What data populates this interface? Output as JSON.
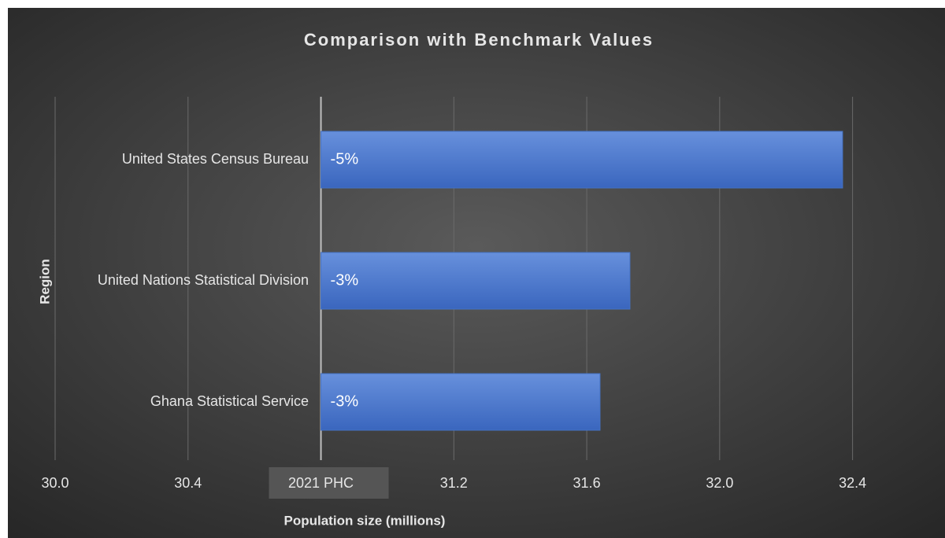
{
  "chart_data": {
    "type": "barh",
    "title": "Comparison with Benchmark Values",
    "xlabel": "Population size (millions)",
    "ylabel": "Region",
    "categories": [
      "United States Census Bureau",
      "United Nations Statistical Division",
      "Ghana Statistical Service"
    ],
    "values": [
      32.37,
      31.73,
      31.64
    ],
    "bar_labels": [
      "-5%",
      "-3%",
      "-3%"
    ],
    "bar_base": 30.8,
    "color": "#4472c4",
    "xlim": [
      30.0,
      32.6
    ],
    "xticks": [
      {
        "value": 30.0,
        "label": "30.0"
      },
      30.4,
      {
        "value": 30.8,
        "label": "2021 PHC"
      },
      31.2,
      31.6,
      {
        "value": 32.0,
        "label": "32.0"
      },
      32.4
    ],
    "grid": true
  }
}
